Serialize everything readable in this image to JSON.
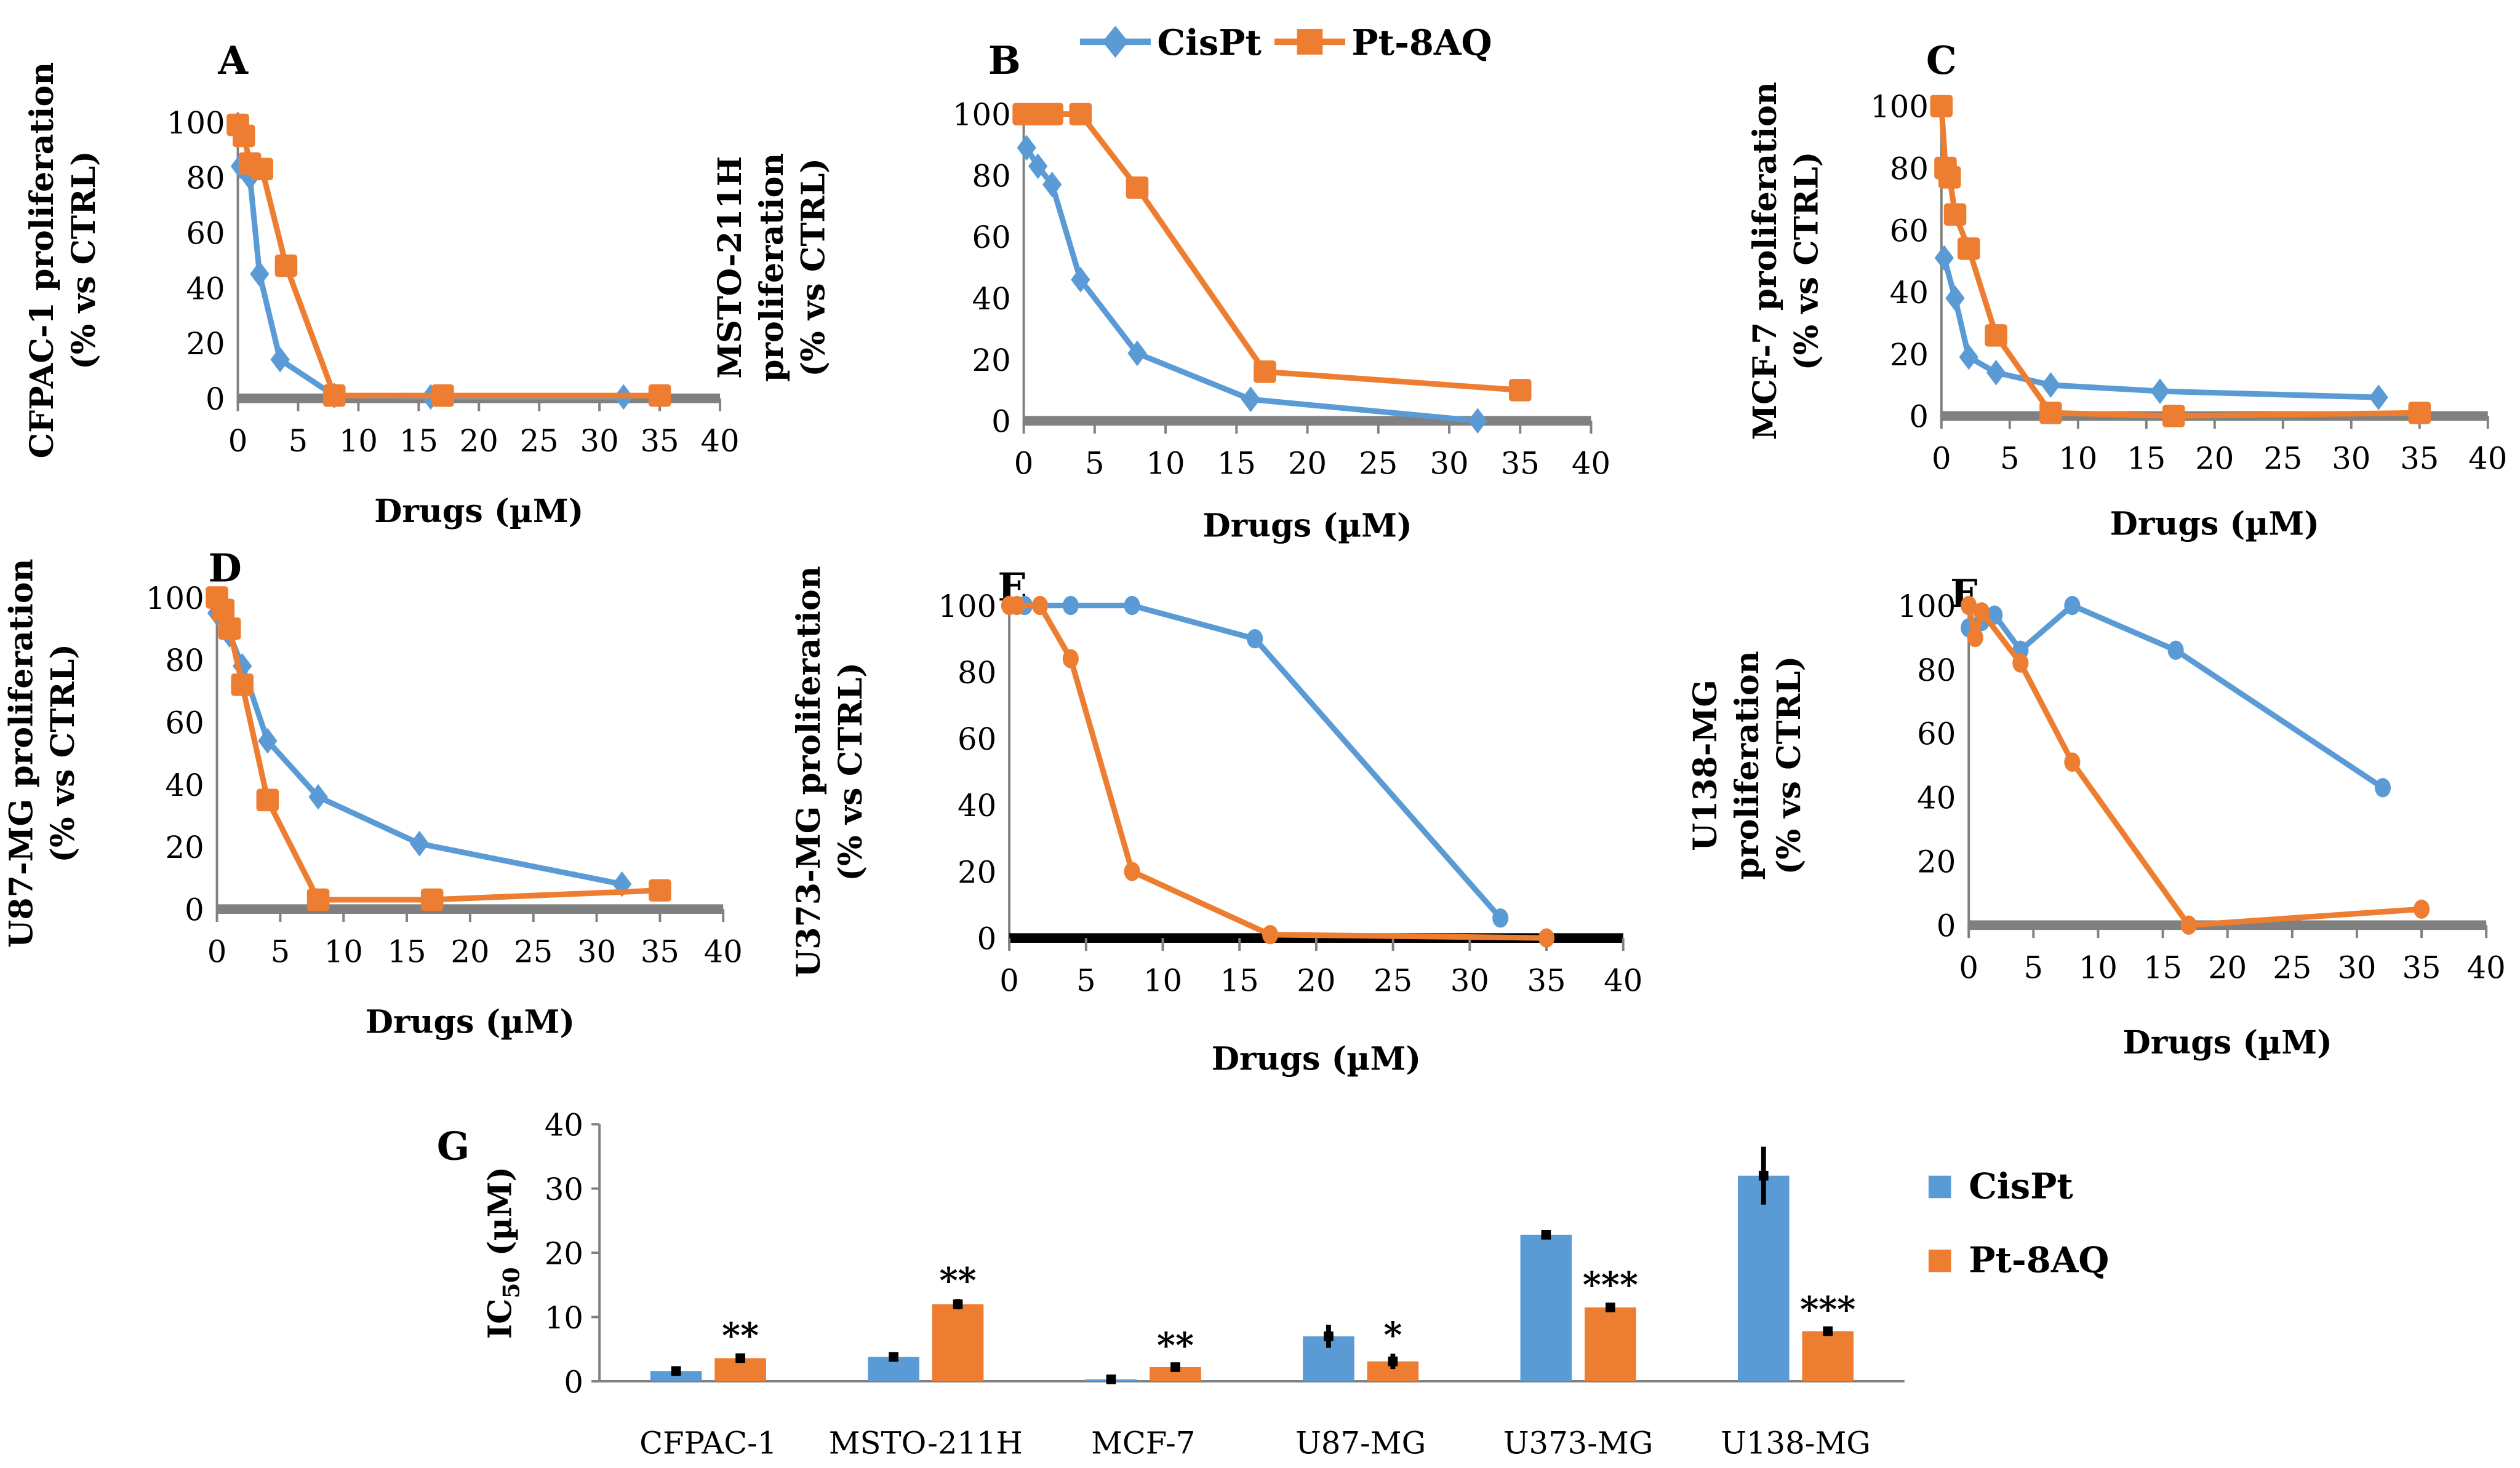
{
  "colors": {
    "cispt": "#5B9BD5",
    "pt8aq": "#ED7D31",
    "axis": "#808080",
    "err": "#000000"
  },
  "legend": {
    "cispt": "CisPt",
    "pt8aq": "Pt-8AQ"
  },
  "chart_data": [
    {
      "id": "A",
      "type": "line",
      "panel": "A",
      "ylabel": [
        "CFPAC-1 proliferation",
        "(% vs CTRL)"
      ],
      "xlabel": "Drugs (µM)",
      "xlim": [
        0,
        40
      ],
      "ylim": [
        0,
        100
      ],
      "xticks": [
        0,
        5,
        10,
        15,
        20,
        25,
        30,
        35,
        40
      ],
      "yticks": [
        0,
        20,
        40,
        60,
        80,
        100
      ],
      "marker_cis": "diamond",
      "marker_pt": "square",
      "series": [
        {
          "name": "CisPt",
          "x": [
            0.2,
            1,
            1.8,
            3.5,
            8,
            16,
            32
          ],
          "y": [
            84,
            80,
            45,
            14,
            1,
            0.5,
            0.5
          ]
        },
        {
          "name": "Pt-8AQ",
          "x": [
            0,
            0.5,
            1,
            2,
            4,
            8,
            17,
            35
          ],
          "y": [
            99,
            95,
            85,
            83,
            48,
            1,
            1,
            1
          ]
        }
      ]
    },
    {
      "id": "B",
      "type": "line",
      "panel": "B",
      "ylabel": [
        "MSTO-211H",
        "proliferation",
        "(% vs CTRL)"
      ],
      "xlabel": "Drugs (µM)",
      "xlim": [
        0,
        40
      ],
      "ylim": [
        0,
        100
      ],
      "xticks": [
        0,
        5,
        10,
        15,
        20,
        25,
        30,
        35,
        40
      ],
      "yticks": [
        0,
        20,
        40,
        60,
        80,
        100
      ],
      "marker_cis": "diamond",
      "marker_pt": "square",
      "series": [
        {
          "name": "CisPt",
          "x": [
            0.2,
            1,
            2,
            4,
            8,
            16,
            32
          ],
          "y": [
            89,
            83,
            77,
            46,
            22,
            7,
            0
          ]
        },
        {
          "name": "Pt-8AQ",
          "x": [
            0,
            1,
            2,
            4,
            8,
            17,
            35
          ],
          "y": [
            100,
            100,
            100,
            100,
            76,
            16,
            10
          ]
        }
      ]
    },
    {
      "id": "C",
      "type": "line",
      "panel": "C",
      "ylabel": [
        "MCF-7 proliferation",
        "(% vs CTRL)"
      ],
      "xlabel": "Drugs (µM)",
      "xlim": [
        0,
        40
      ],
      "ylim": [
        0,
        100
      ],
      "xticks": [
        0,
        5,
        10,
        15,
        20,
        25,
        30,
        35,
        40
      ],
      "yticks": [
        0,
        20,
        40,
        60,
        80,
        100
      ],
      "marker_cis": "diamond",
      "marker_pt": "square",
      "series": [
        {
          "name": "CisPt",
          "x": [
            0.2,
            1,
            2,
            4,
            8,
            16,
            32
          ],
          "y": [
            51,
            38,
            19,
            14,
            10,
            8,
            6
          ]
        },
        {
          "name": "Pt-8AQ",
          "x": [
            0,
            0.3,
            0.6,
            1,
            2,
            4,
            8,
            17,
            35
          ],
          "y": [
            100,
            80,
            77,
            65,
            54,
            26,
            1,
            0,
            1
          ]
        }
      ]
    },
    {
      "id": "D",
      "type": "line",
      "panel": "D",
      "ylabel": [
        "U87-MG proliferation",
        "(% vs CTRL)"
      ],
      "xlabel": "Drugs (µM)",
      "xlim": [
        0,
        40
      ],
      "ylim": [
        0,
        100
      ],
      "xticks": [
        0,
        5,
        10,
        15,
        20,
        25,
        30,
        35,
        40
      ],
      "yticks": [
        0,
        20,
        40,
        60,
        80,
        100
      ],
      "marker_cis": "diamond",
      "marker_pt": "square",
      "series": [
        {
          "name": "CisPt",
          "x": [
            0,
            1,
            2,
            4,
            8,
            16,
            32
          ],
          "y": [
            95,
            88,
            78,
            54,
            36,
            21,
            8
          ]
        },
        {
          "name": "Pt-8AQ",
          "x": [
            0,
            0.5,
            1,
            2,
            4,
            8,
            17,
            35
          ],
          "y": [
            100,
            96,
            90,
            72,
            35,
            3,
            3,
            6
          ]
        }
      ]
    },
    {
      "id": "E",
      "type": "line",
      "panel": "E",
      "ylabel": [
        "U373-MG proliferation",
        "(% vs CTRL)"
      ],
      "xlabel": "Drugs (µM)",
      "xlim": [
        0,
        40
      ],
      "ylim": [
        0,
        100
      ],
      "xticks": [
        0,
        5,
        10,
        15,
        20,
        25,
        30,
        35,
        40
      ],
      "yticks": [
        0,
        20,
        40,
        60,
        80,
        100
      ],
      "marker_cis": "circle",
      "marker_pt": "circle",
      "series": [
        {
          "name": "CisPt",
          "x": [
            0,
            1,
            4,
            8,
            16,
            32
          ],
          "y": [
            100,
            100,
            100,
            100,
            90,
            6
          ]
        },
        {
          "name": "Pt-8AQ",
          "x": [
            0,
            0.5,
            2,
            4,
            8,
            17,
            35
          ],
          "y": [
            100,
            100,
            100,
            84,
            20,
            1,
            0
          ]
        }
      ]
    },
    {
      "id": "F",
      "type": "line",
      "panel": "F",
      "ylabel": [
        "U138-MG",
        "proliferation",
        "(% vs CTRL)"
      ],
      "xlabel": "Drugs (µM)",
      "xlim": [
        0,
        40
      ],
      "ylim": [
        0,
        100
      ],
      "xticks": [
        0,
        5,
        10,
        15,
        20,
        25,
        30,
        35,
        40
      ],
      "yticks": [
        0,
        20,
        40,
        60,
        80,
        100
      ],
      "marker_cis": "circle",
      "marker_pt": "circle",
      "series": [
        {
          "name": "CisPt",
          "x": [
            0,
            1,
            2,
            4,
            8,
            16,
            32
          ],
          "y": [
            93,
            95,
            97,
            86,
            100,
            86,
            43
          ]
        },
        {
          "name": "Pt-8AQ",
          "x": [
            0,
            0.5,
            1,
            4,
            8,
            17,
            35
          ],
          "y": [
            100,
            90,
            98,
            82,
            51,
            0,
            5
          ]
        }
      ]
    },
    {
      "id": "G",
      "type": "bar",
      "panel": "G",
      "ylabel": "IC",
      "ylabel_sub": "50",
      "ylabel_unit": " (µM)",
      "ylim": [
        0,
        40
      ],
      "yticks": [
        0,
        10,
        20,
        30,
        40
      ],
      "categories": [
        "CFPAC-1",
        "MSTO-211H",
        "MCF-7",
        "U87-MG",
        "U373-MG",
        "U138-MG"
      ],
      "series": [
        {
          "name": "CisPt",
          "values": [
            1.6,
            3.8,
            0.3,
            7.0,
            22.8,
            32.0
          ],
          "errors": [
            0.3,
            0.4,
            0.1,
            1.8,
            0.5,
            4.5
          ]
        },
        {
          "name": "Pt-8AQ",
          "values": [
            3.6,
            12.0,
            2.2,
            3.1,
            11.5,
            7.8
          ],
          "errors": [
            0.6,
            0.8,
            0.5,
            1.2,
            0.6,
            0.5
          ]
        }
      ],
      "significance": [
        "**",
        "**",
        "**",
        "*",
        "***",
        "***"
      ]
    }
  ]
}
